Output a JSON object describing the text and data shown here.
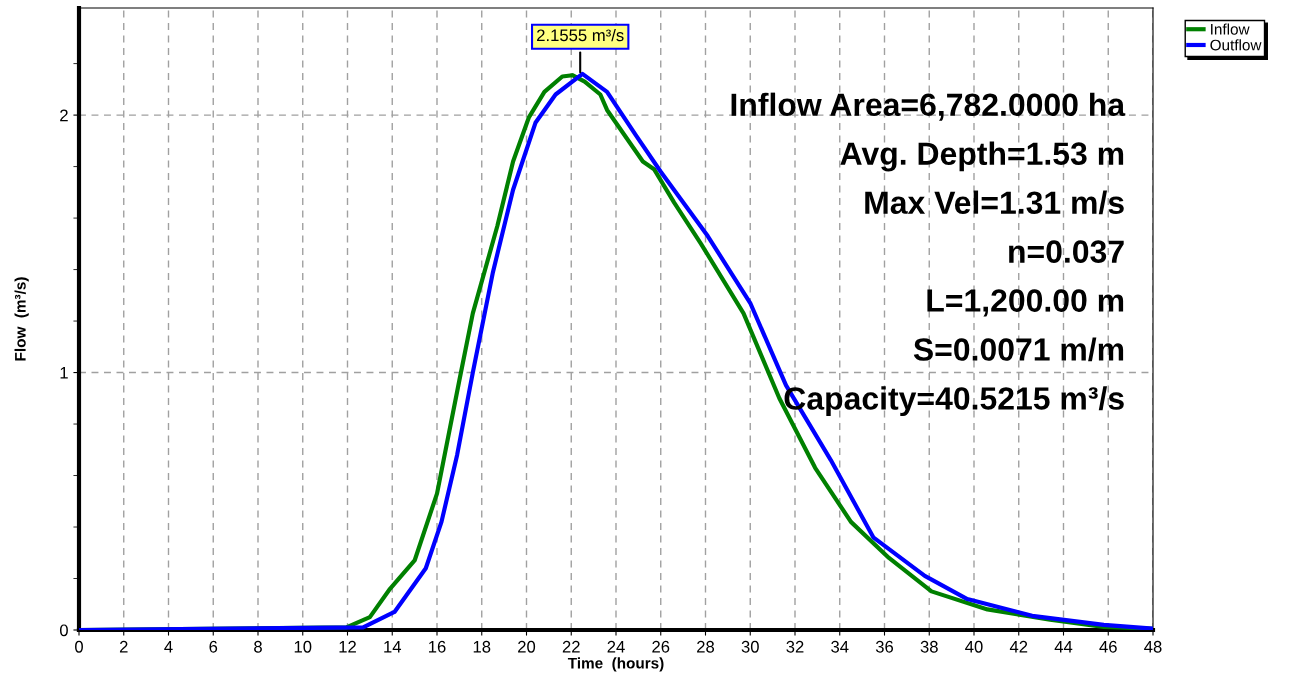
{
  "chart_data": {
    "type": "line",
    "xlabel": "Time  (hours)",
    "ylabel": "Flow  (m³/s)",
    "xlim": [
      0,
      48
    ],
    "xticks": [
      0,
      2,
      4,
      6,
      8,
      10,
      12,
      14,
      16,
      18,
      20,
      22,
      24,
      26,
      28,
      30,
      32,
      34,
      36,
      38,
      40,
      42,
      44,
      46,
      48
    ],
    "ylim": [
      0,
      2.416
    ],
    "yticks": [
      0,
      {
        "value": 0.2,
        "label": null
      },
      {
        "value": 0.4,
        "label": null
      },
      {
        "value": 0.6,
        "label": null
      },
      {
        "value": 0.8,
        "label": null
      },
      1,
      {
        "value": 1.2,
        "label": null
      },
      {
        "value": 1.4,
        "label": null
      },
      {
        "value": 1.6,
        "label": null
      },
      {
        "value": 1.8,
        "label": null
      },
      2,
      {
        "value": 2.2,
        "label": null
      }
    ],
    "grid": true,
    "legend": "top right",
    "line_style": "solid",
    "marker": "none",
    "series": [
      {
        "name": "Inflow",
        "color": "#008000",
        "x": [
          0,
          11.95,
          13.0,
          13.9,
          15.0,
          16.0,
          17.0,
          17.6,
          18.7,
          19.4,
          20.1,
          20.8,
          21.6,
          22.05,
          22.6,
          23.3,
          23.6,
          25.2,
          25.7,
          26.6,
          27.8,
          29.7,
          31.3,
          32.9,
          34.5,
          36.2,
          38.1,
          40.6,
          43.4,
          45.8,
          48
        ],
        "values": [
          0,
          0.01,
          0.05,
          0.16,
          0.27,
          0.53,
          0.97,
          1.23,
          1.57,
          1.82,
          1.99,
          2.09,
          2.15,
          2.155,
          2.13,
          2.08,
          2.02,
          1.82,
          1.79,
          1.66,
          1.5,
          1.23,
          0.9,
          0.63,
          0.42,
          0.28,
          0.15,
          0.08,
          0.04,
          0.012,
          0.005
        ]
      },
      {
        "name": "Outflow",
        "color": "#0000ff",
        "x": [
          0,
          12.7,
          14.1,
          15.5,
          16.2,
          16.9,
          17.6,
          18.5,
          19.4,
          20.4,
          21.3,
          22.5,
          23.6,
          24.9,
          26.0,
          28.1,
          30.0,
          31.6,
          33.6,
          35.5,
          37.8,
          39.7,
          42.6,
          45.8,
          48
        ],
        "values": [
          0,
          0.01,
          0.07,
          0.24,
          0.42,
          0.68,
          1.0,
          1.39,
          1.71,
          1.97,
          2.08,
          2.16,
          2.09,
          1.92,
          1.78,
          1.53,
          1.27,
          0.95,
          0.66,
          0.36,
          0.21,
          0.12,
          0.055,
          0.02,
          0.005
        ]
      }
    ],
    "annotations": [
      {
        "text": "2.1555 m³/s",
        "x": 22.4,
        "y": 2.1555
      },
      "Inflow Area=6,782.0000 ha",
      "Avg. Depth=1.53 m",
      "Max Vel=1.31 m/s",
      "n=0.037",
      "L=1,200.00 m",
      "S=0.0071 m/m",
      "Capacity=40.5215 m³/s"
    ]
  }
}
